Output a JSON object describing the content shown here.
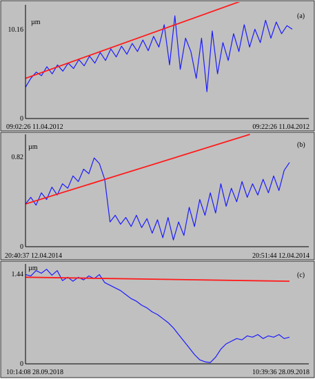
{
  "colors": {
    "background": "#c0c0c0",
    "signal": "#1a1aff",
    "trend": "#ff1a1a",
    "axes": "#000000"
  },
  "chart_data": [
    {
      "type": "line",
      "panel_label": "(a)",
      "unit_label": "µm",
      "y_ticks": [
        "10.16",
        "0"
      ],
      "ylim": [
        0,
        12.5
      ],
      "x_start_label": "09:02:26 11.04.2012",
      "x_end_label": "09:22:26 11.04.2012",
      "xlim": [
        0,
        100
      ],
      "series": [
        {
          "role": "signal",
          "x": [
            0,
            2,
            4,
            6,
            8,
            10,
            12,
            14,
            16,
            18,
            20,
            22,
            24,
            26,
            28,
            30,
            32,
            34,
            36,
            38,
            40,
            42,
            44,
            46,
            48,
            50,
            52,
            54,
            56,
            58,
            60,
            62,
            64,
            66,
            68,
            70,
            72,
            74,
            76,
            78,
            80,
            82,
            84,
            86,
            88,
            90,
            92,
            94,
            96,
            98,
            100
          ],
          "values": [
            3.5,
            4.5,
            5.2,
            4.8,
            5.8,
            5.0,
            6.0,
            5.3,
            6.2,
            5.6,
            6.6,
            5.9,
            7.0,
            6.2,
            7.4,
            6.5,
            7.8,
            6.9,
            8.1,
            7.2,
            8.4,
            7.5,
            8.8,
            7.6,
            9.2,
            8.0,
            10.5,
            6.0,
            11.5,
            5.5,
            9.0,
            7.5,
            4.5,
            9.0,
            3.0,
            9.8,
            5.0,
            8.5,
            6.5,
            9.5,
            7.5,
            10.5,
            8.0,
            10.0,
            8.5,
            11.0,
            9.0,
            10.8,
            9.5,
            10.4,
            10.0
          ]
        },
        {
          "role": "trend",
          "x": [
            0,
            100
          ],
          "values": [
            4.5,
            15.2
          ]
        }
      ]
    },
    {
      "type": "line",
      "panel_label": "(b)",
      "unit_label": "µm",
      "y_ticks": [
        "0.82",
        "0"
      ],
      "ylim": [
        0,
        1.0
      ],
      "x_start_label": "20:40:37 12.04.2014",
      "x_end_label": "20:51:44 12.04.2014",
      "xlim": [
        0,
        100
      ],
      "series": [
        {
          "role": "signal",
          "x": [
            0,
            2,
            4,
            6,
            8,
            10,
            12,
            14,
            16,
            18,
            20,
            22,
            24,
            26,
            28,
            30,
            32,
            34,
            36,
            38,
            40,
            42,
            44,
            46,
            48,
            50,
            52,
            54,
            56,
            58,
            60,
            62,
            64,
            66,
            68,
            70,
            72,
            74,
            76,
            78,
            80,
            82,
            84,
            86,
            88,
            90,
            92,
            94,
            96,
            98,
            100
          ],
          "values": [
            0.38,
            0.44,
            0.37,
            0.48,
            0.42,
            0.53,
            0.46,
            0.56,
            0.52,
            0.63,
            0.58,
            0.69,
            0.65,
            0.79,
            0.74,
            0.6,
            0.22,
            0.28,
            0.2,
            0.26,
            0.18,
            0.28,
            0.17,
            0.25,
            0.12,
            0.24,
            0.08,
            0.26,
            0.06,
            0.22,
            0.1,
            0.35,
            0.18,
            0.42,
            0.28,
            0.48,
            0.3,
            0.56,
            0.36,
            0.52,
            0.4,
            0.58,
            0.44,
            0.56,
            0.46,
            0.6,
            0.48,
            0.63,
            0.5,
            0.68,
            0.75
          ]
        },
        {
          "role": "trend",
          "x": [
            0,
            85
          ],
          "values": [
            0.38,
            1.0
          ]
        }
      ]
    },
    {
      "type": "line",
      "panel_label": "(c)",
      "unit_label": "µm",
      "y_ticks": [
        "1.44",
        "0"
      ],
      "ylim": [
        0,
        1.5
      ],
      "x_start_label": "10:14:08 28.09.2018",
      "x_end_label": "10:39:36 28.09.2018",
      "xlim": [
        0,
        100
      ],
      "series": [
        {
          "role": "signal",
          "x": [
            0,
            2,
            4,
            6,
            8,
            10,
            12,
            14,
            16,
            18,
            20,
            22,
            24,
            26,
            28,
            30,
            32,
            34,
            36,
            38,
            40,
            42,
            44,
            46,
            48,
            50,
            52,
            54,
            56,
            58,
            60,
            62,
            64,
            66,
            68,
            70,
            72,
            74,
            76,
            78,
            80,
            82,
            84,
            86,
            88,
            90,
            92,
            94,
            96,
            98,
            100
          ],
          "values": [
            1.34,
            1.32,
            1.4,
            1.36,
            1.42,
            1.33,
            1.4,
            1.25,
            1.3,
            1.24,
            1.3,
            1.26,
            1.32,
            1.28,
            1.34,
            1.22,
            1.18,
            1.14,
            1.1,
            1.04,
            0.98,
            0.94,
            0.88,
            0.84,
            0.78,
            0.74,
            0.68,
            0.62,
            0.54,
            0.44,
            0.34,
            0.24,
            0.14,
            0.06,
            0.03,
            0.02,
            0.1,
            0.22,
            0.3,
            0.34,
            0.38,
            0.36,
            0.42,
            0.4,
            0.44,
            0.38,
            0.42,
            0.4,
            0.44,
            0.38,
            0.4
          ]
        },
        {
          "role": "trend",
          "x": [
            0,
            100
          ],
          "values": [
            1.3,
            1.24
          ]
        }
      ]
    }
  ]
}
